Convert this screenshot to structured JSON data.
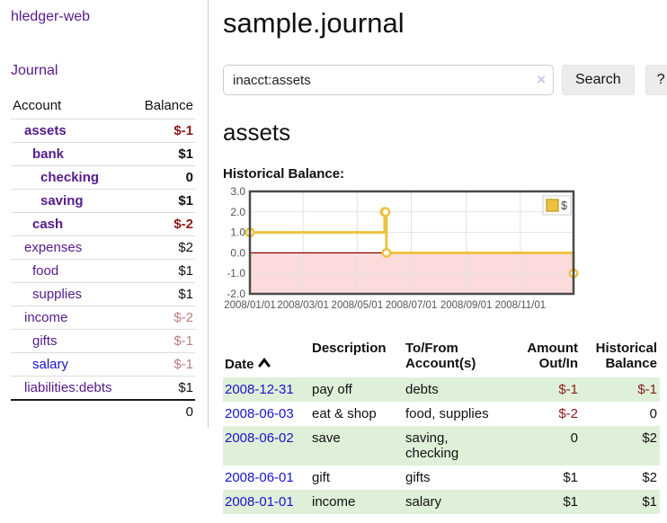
{
  "app": {
    "title": "hledger-web"
  },
  "sidebar": {
    "nav_journal": "Journal",
    "accounts": {
      "col_account": "Account",
      "col_balance": "Balance",
      "rows": [
        {
          "name": "assets",
          "indent": 1,
          "bold": true,
          "link": "visited",
          "balance": "$-1",
          "balance_class": "negative-strong"
        },
        {
          "name": "bank",
          "indent": 2,
          "bold": true,
          "link": "visited",
          "balance": "$1",
          "balance_class": "normal"
        },
        {
          "name": "checking",
          "indent": 3,
          "bold": true,
          "link": "visited",
          "balance": "0",
          "balance_class": "normal"
        },
        {
          "name": "saving",
          "indent": 3,
          "bold": true,
          "link": "visited",
          "balance": "$1",
          "balance_class": "normal"
        },
        {
          "name": "cash",
          "indent": 2,
          "bold": true,
          "link": "visited",
          "balance": "$-2",
          "balance_class": "negative-strong"
        },
        {
          "name": "expenses",
          "indent": 1,
          "bold": false,
          "link": "visited",
          "balance": "$2",
          "balance_class": "normal"
        },
        {
          "name": "food",
          "indent": 2,
          "bold": false,
          "link": "visited",
          "balance": "$1",
          "balance_class": "normal"
        },
        {
          "name": "supplies",
          "indent": 2,
          "bold": false,
          "link": "visited",
          "balance": "$1",
          "balance_class": "normal"
        },
        {
          "name": "income",
          "indent": 1,
          "bold": false,
          "link": "visited",
          "balance": "$-2",
          "balance_class": "negative-muted"
        },
        {
          "name": "gifts",
          "indent": 2,
          "bold": false,
          "link": "visited",
          "balance": "$-1",
          "balance_class": "negative-muted"
        },
        {
          "name": "salary",
          "indent": 2,
          "bold": false,
          "link": "unvisited",
          "balance": "$-1",
          "balance_class": "negative-muted"
        },
        {
          "name": "liabilities:debts",
          "indent": 1,
          "bold": false,
          "link": "visited",
          "balance": "$1",
          "balance_class": "normal"
        }
      ],
      "total": "0"
    }
  },
  "main": {
    "title": "sample.journal",
    "search": {
      "value": "inacct:assets",
      "clear_icon": "×",
      "button": "Search",
      "help_button": "?"
    },
    "account_heading": "assets",
    "chart_label": "Historical Balance:",
    "register": {
      "col_date": "Date",
      "col_description": "Description",
      "col_to_from": "To/From\nAccount(s)",
      "col_amount": "Amount\nOut/In",
      "col_balance": "Historical\nBalance",
      "rows": [
        {
          "date": "2008-12-31",
          "description": "pay off",
          "to_from": "debts",
          "amount": "$-1",
          "amount_neg": true,
          "balance": "$-1",
          "balance_neg": true,
          "highlight": true
        },
        {
          "date": "2008-06-03",
          "description": "eat & shop",
          "to_from": "food, supplies",
          "amount": "$-2",
          "amount_neg": true,
          "balance": "0",
          "balance_neg": false,
          "highlight": false
        },
        {
          "date": "2008-06-02",
          "description": "save",
          "to_from": "saving,\nchecking",
          "amount": "0",
          "amount_neg": false,
          "balance": "$2",
          "balance_neg": false,
          "highlight": true
        },
        {
          "date": "2008-06-01",
          "description": "gift",
          "to_from": "gifts",
          "amount": "$1",
          "amount_neg": false,
          "balance": "$2",
          "balance_neg": false,
          "highlight": false
        },
        {
          "date": "2008-01-01",
          "description": "income",
          "to_from": "salary",
          "amount": "$1",
          "amount_neg": false,
          "balance": "$1",
          "balance_neg": false,
          "highlight": true
        }
      ]
    }
  },
  "chart_data": {
    "type": "line",
    "title": "Historical Balance:",
    "step": true,
    "ylim": [
      -2,
      3
    ],
    "y_ticks": [
      3.0,
      2.0,
      1.0,
      0.0,
      -1.0,
      -2.0
    ],
    "x_range_days": 365,
    "x_ticks": [
      {
        "label": "2008/01/01",
        "day": 0
      },
      {
        "label": "2008/03/01",
        "day": 60
      },
      {
        "label": "2008/05/01",
        "day": 121
      },
      {
        "label": "2008/07/01",
        "day": 182
      },
      {
        "label": "2008/09/01",
        "day": 244
      },
      {
        "label": "2008/11/01",
        "day": 305
      }
    ],
    "series": [
      {
        "name": "$",
        "color": "#edc240",
        "points": [
          {
            "date": "2008-01-01",
            "day": 0,
            "value": 1
          },
          {
            "date": "2008-06-01",
            "day": 152,
            "value": 2
          },
          {
            "date": "2008-06-02",
            "day": 153,
            "value": 2
          },
          {
            "date": "2008-06-03",
            "day": 154,
            "value": 0
          },
          {
            "date": "2008-12-31",
            "day": 365,
            "value": -1
          }
        ]
      }
    ],
    "layout_hints": {
      "grid": true,
      "legend_position": "top-right",
      "negative_region_fill": "#fbdbdb",
      "zero_line_color": "#8b0000",
      "plot_border_color": "#4a4a4a",
      "gridline_color": "#e2e2e2",
      "tick_label_color": "#545454"
    }
  }
}
